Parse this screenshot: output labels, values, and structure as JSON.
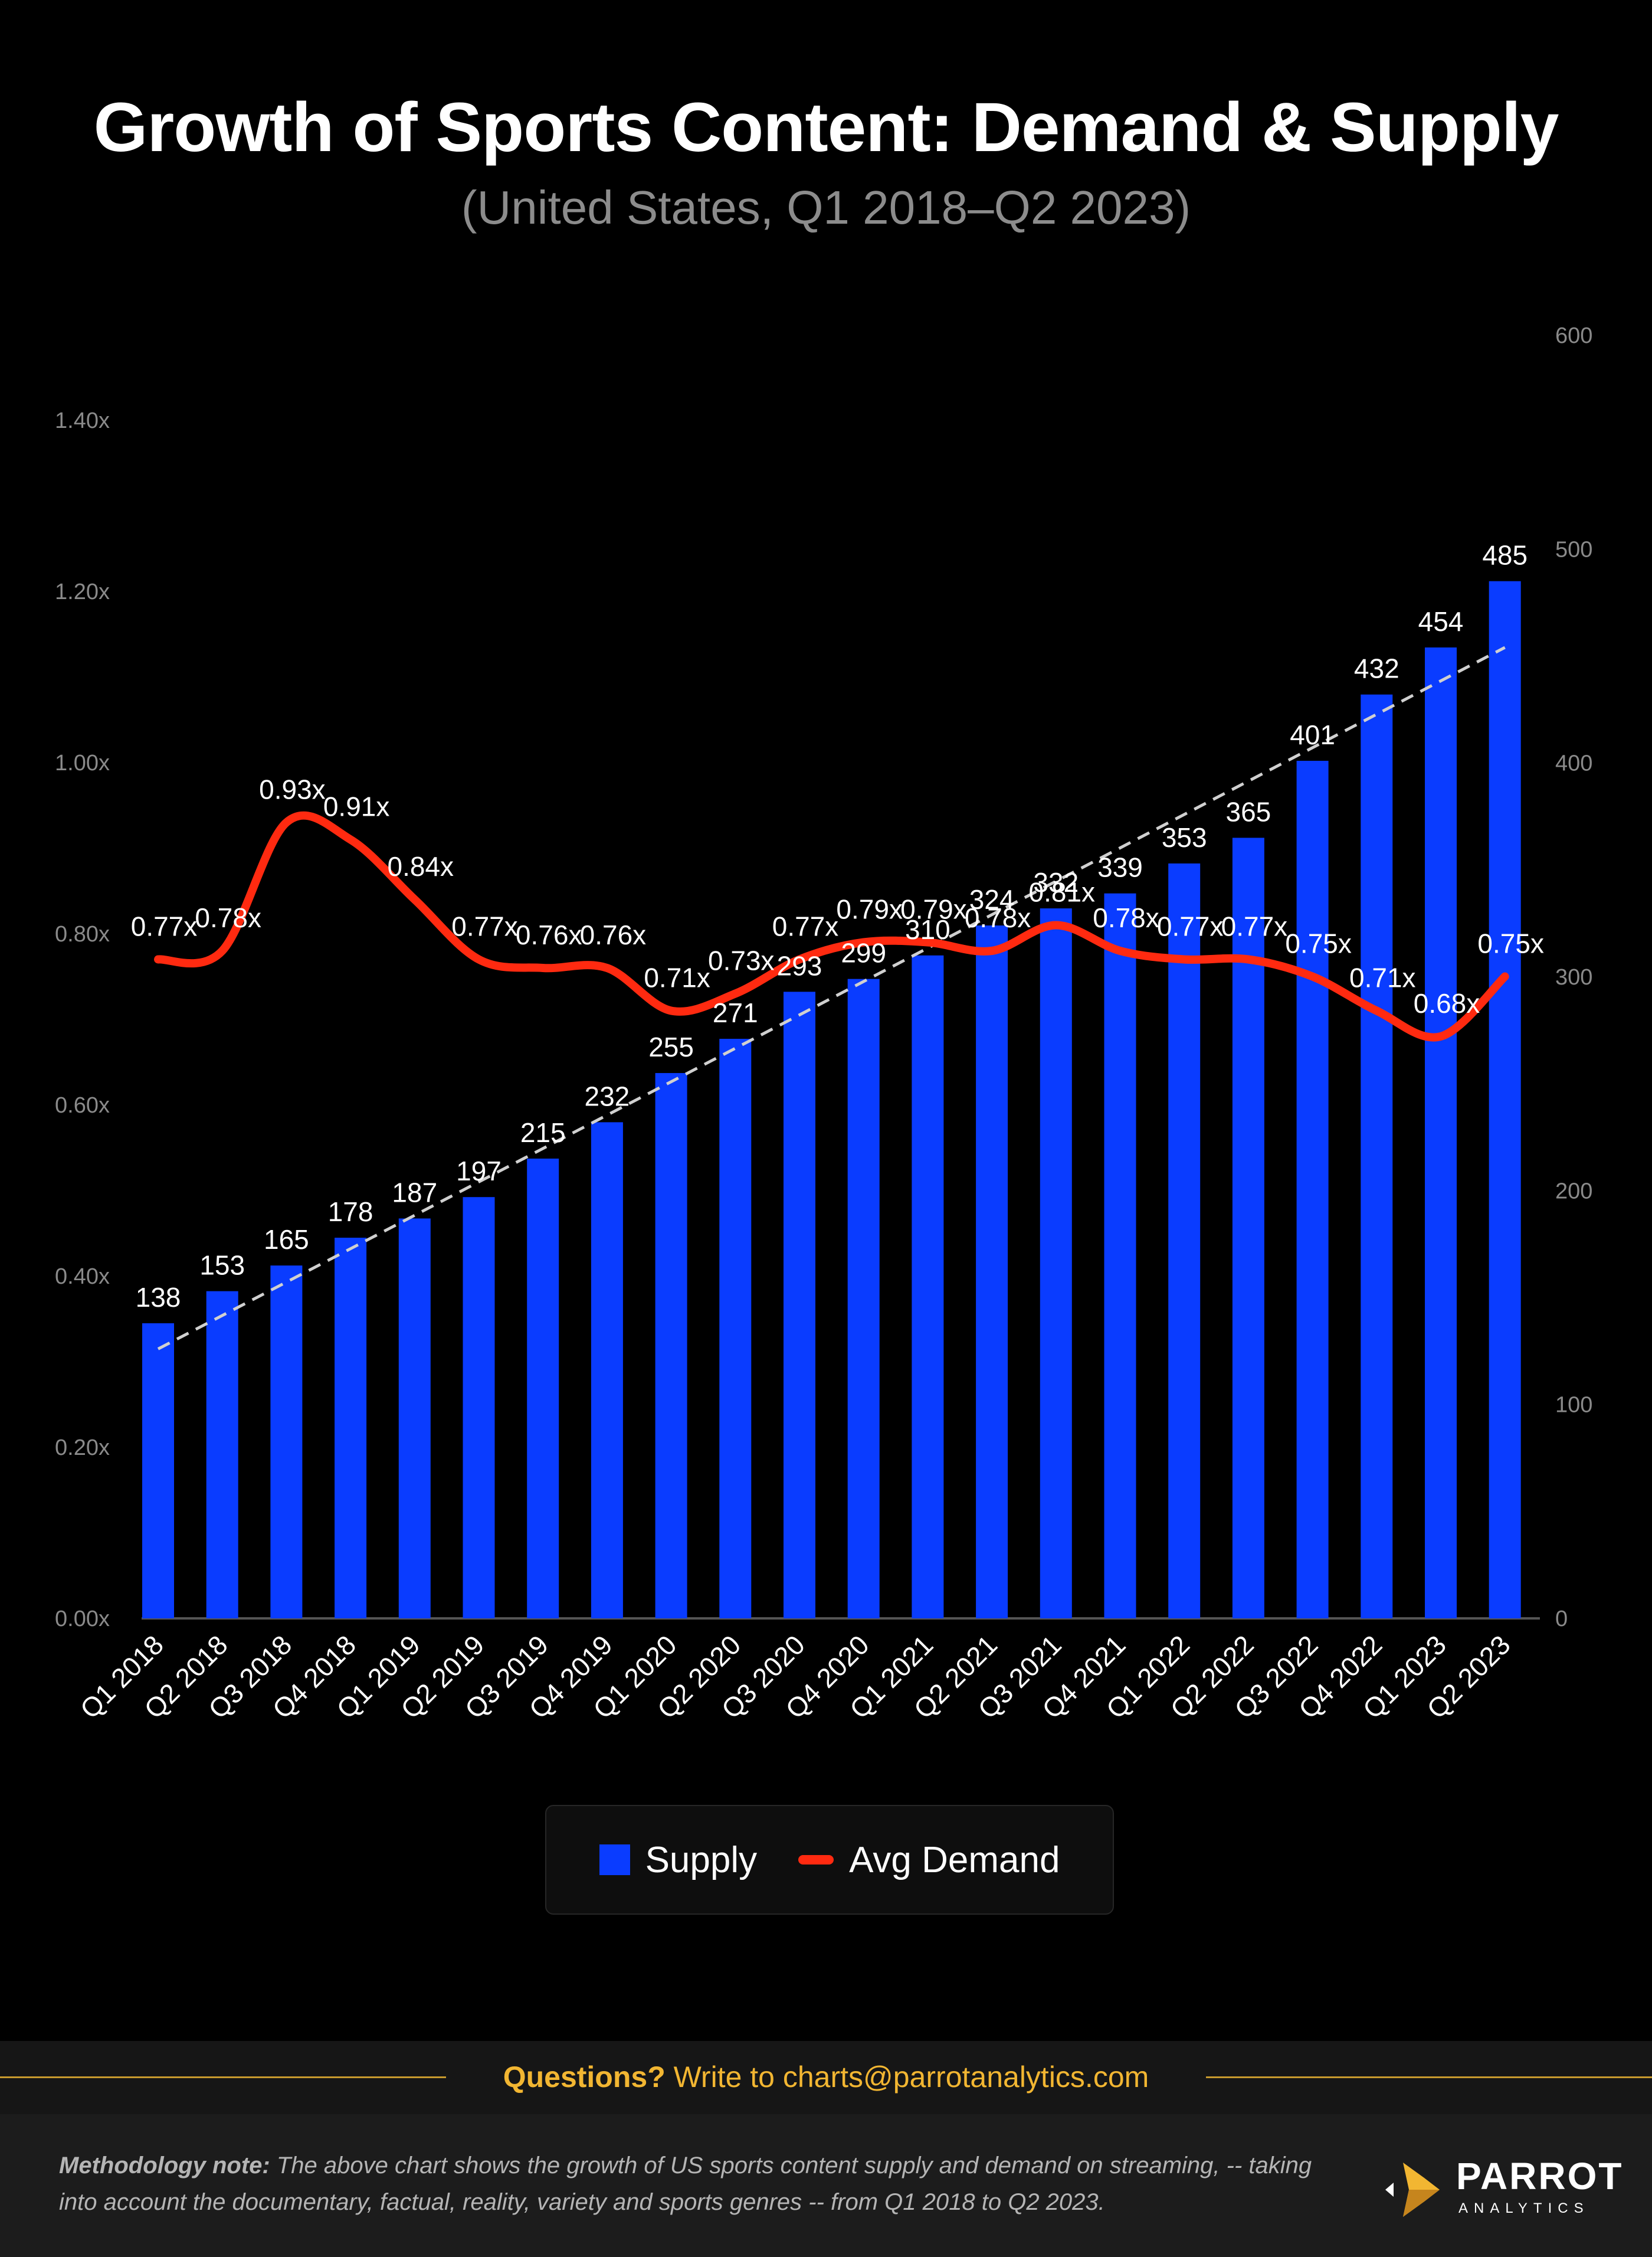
{
  "header": {
    "title": "Growth of Sports Content: Demand & Supply",
    "subtitle": "(United States, Q1 2018–Q2 2023)"
  },
  "colors": {
    "background": "#000000",
    "supply_bar": "#0a3cff",
    "demand_line": "#ff2a10",
    "trendline": "#d0d0d0",
    "accent_gold": "#f2b632"
  },
  "chart_data": {
    "type": "bar",
    "categories": [
      "Q1 2018",
      "Q2 2018",
      "Q3 2018",
      "Q4 2018",
      "Q1 2019",
      "Q2 2019",
      "Q3 2019",
      "Q4 2019",
      "Q1 2020",
      "Q2 2020",
      "Q3 2020",
      "Q4 2020",
      "Q1 2021",
      "Q2 2021",
      "Q3 2021",
      "Q4 2021",
      "Q1 2022",
      "Q2 2022",
      "Q3 2022",
      "Q4 2022",
      "Q1 2023",
      "Q2 2023"
    ],
    "series": [
      {
        "name": "Supply",
        "type": "bar",
        "axis": "right",
        "values": [
          138,
          153,
          165,
          178,
          187,
          197,
          215,
          232,
          255,
          271,
          293,
          299,
          310,
          324,
          332,
          339,
          353,
          365,
          401,
          432,
          454,
          485
        ]
      },
      {
        "name": "Avg Demand",
        "type": "line",
        "axis": "left",
        "values": [
          0.77,
          0.78,
          0.93,
          0.91,
          0.84,
          0.77,
          0.76,
          0.76,
          0.71,
          0.73,
          0.77,
          0.79,
          0.79,
          0.78,
          0.81,
          0.78,
          0.77,
          0.77,
          0.75,
          0.71,
          0.68,
          0.75
        ],
        "labels": [
          "0.77x",
          "0.78x",
          "0.93x",
          "0.91x",
          "0.84x",
          "0.77x",
          "0.76x",
          "0.76x",
          "0.71x",
          "0.73x",
          "0.77x",
          "0.79x",
          "0.79x",
          "0.78x",
          "0.81x",
          "0.78x",
          "0.77x",
          "0.77x",
          "0.75x",
          "0.71x",
          "0.68x",
          "0.75x"
        ]
      }
    ],
    "trendline": {
      "series": "Supply",
      "style": "dashed linear",
      "start": 126,
      "end": 454
    },
    "y_left": {
      "ylim": [
        0,
        1.4
      ],
      "ticks": [
        "0.00x",
        "0.20x",
        "0.40x",
        "0.60x",
        "0.80x",
        "1.00x",
        "1.20x",
        "1.40x"
      ]
    },
    "y_right": {
      "ylim": [
        0,
        600
      ],
      "ticks": [
        "0",
        "100",
        "200",
        "300",
        "400",
        "500",
        "600"
      ]
    },
    "legend": {
      "position": "bottom-center",
      "items": [
        "Supply",
        "Avg Demand"
      ]
    },
    "grid": false
  },
  "footer": {
    "questions_bold": "Questions?",
    "questions_text": " Write to charts@parrotanalytics.com",
    "method_label": "Methodology note:",
    "method_text": " The above chart shows the growth of US sports content supply and demand on streaming, -- taking into account the documentary, factual, reality, variety and sports genres -- from Q1 2018 to Q2 2023.",
    "logo_name": "PARROT",
    "logo_sub": "ANALYTICS"
  }
}
